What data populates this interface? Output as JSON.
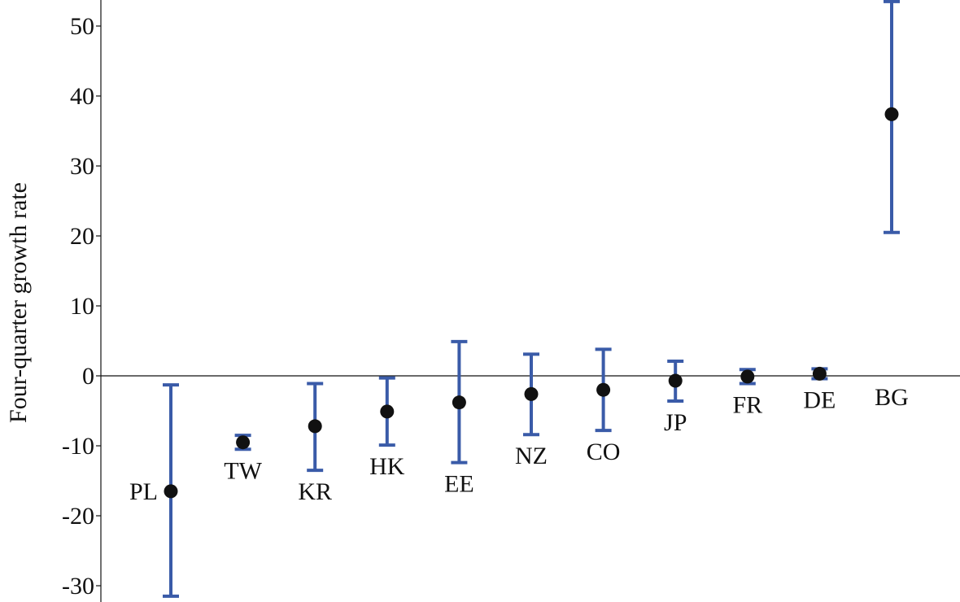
{
  "chart_data": {
    "type": "scatter",
    "ylabel": "Four-quarter growth rate",
    "ylim": [
      -31.5,
      53.5
    ],
    "yticks": [
      50,
      40,
      30,
      20,
      10,
      0,
      -10,
      -20,
      -30
    ],
    "yticklabels": [
      "50",
      "40",
      "30",
      "20",
      "10",
      "0",
      "-10",
      "-20",
      "-30"
    ],
    "zero_line": true,
    "grid": false,
    "colors": {
      "point": "#111111",
      "errorbar": "#3a5ba8",
      "axis": "#111111"
    },
    "points": [
      {
        "label": "PL",
        "value": -16.5,
        "low": -31.5,
        "high": -1.3,
        "label_side": "left"
      },
      {
        "label": "TW",
        "value": -9.5,
        "low": -10.5,
        "high": -8.5,
        "label_side": "below"
      },
      {
        "label": "KR",
        "value": -7.2,
        "low": -13.5,
        "high": -1.1,
        "label_side": "below"
      },
      {
        "label": "HK",
        "value": -5.1,
        "low": -9.9,
        "high": -0.3,
        "label_side": "below"
      },
      {
        "label": "EE",
        "value": -3.8,
        "low": -12.4,
        "high": 4.9,
        "label_side": "below"
      },
      {
        "label": "NZ",
        "value": -2.6,
        "low": -8.4,
        "high": 3.1,
        "label_side": "below"
      },
      {
        "label": "CO",
        "value": -2.0,
        "low": -7.8,
        "high": 3.8,
        "label_side": "below"
      },
      {
        "label": "JP",
        "value": -0.7,
        "low": -3.6,
        "high": 2.1,
        "label_side": "below"
      },
      {
        "label": "FR",
        "value": -0.1,
        "low": -1.1,
        "high": 0.9,
        "label_side": "below"
      },
      {
        "label": "DE",
        "value": 0.3,
        "low": -0.4,
        "high": 1.0,
        "label_side": "below"
      },
      {
        "label": "BG",
        "value": 37.4,
        "low": 20.5,
        "high": 53.5,
        "label_side": "below"
      }
    ]
  }
}
